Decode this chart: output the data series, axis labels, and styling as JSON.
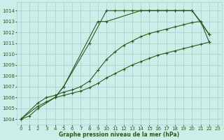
{
  "background_color": "#cceee8",
  "grid_color": "#aad4ce",
  "line_color": "#2d5a1b",
  "xlabel": "Graphe pression niveau de la mer (hPa)",
  "ylim": [
    1003.5,
    1014.8
  ],
  "xlim": [
    -0.5,
    23.5
  ],
  "yticks": [
    1004,
    1005,
    1006,
    1007,
    1008,
    1009,
    1010,
    1011,
    1012,
    1013,
    1014
  ],
  "xticks": [
    0,
    1,
    2,
    3,
    4,
    5,
    6,
    7,
    8,
    9,
    10,
    11,
    12,
    13,
    14,
    15,
    16,
    17,
    18,
    19,
    20,
    21,
    22,
    23
  ],
  "s1_x": [
    0,
    1,
    2,
    4,
    5,
    9,
    10,
    14,
    15,
    16,
    17,
    18,
    19,
    20,
    21,
    22
  ],
  "s1_y": [
    1004.0,
    1004.3,
    1005.0,
    1006.0,
    1007.0,
    1013.0,
    1013.0,
    1014.0,
    1014.0,
    1014.0,
    1014.0,
    1014.0,
    1014.0,
    1014.0,
    1013.0,
    1011.1
  ],
  "s2_x": [
    0,
    2,
    3,
    4,
    5,
    6,
    7,
    8,
    9,
    10,
    11,
    12,
    13,
    14,
    15,
    16,
    17,
    18,
    19,
    20,
    21,
    22
  ],
  "s2_y": [
    1004.0,
    1005.5,
    1006.0,
    1006.2,
    1006.5,
    1006.7,
    1007.0,
    1007.5,
    1008.5,
    1009.5,
    1010.2,
    1010.8,
    1011.2,
    1011.6,
    1011.9,
    1012.1,
    1012.3,
    1012.5,
    1012.7,
    1012.9,
    1013.0,
    1011.8
  ],
  "s3_x": [
    0,
    2,
    3,
    4,
    5,
    6,
    7,
    8,
    9,
    10,
    11,
    12,
    13,
    14,
    15,
    16,
    17,
    18,
    19,
    20,
    21,
    22
  ],
  "s3_y": [
    1004.0,
    1005.2,
    1005.6,
    1006.0,
    1006.2,
    1006.4,
    1006.6,
    1006.9,
    1007.3,
    1007.8,
    1008.2,
    1008.6,
    1009.0,
    1009.3,
    1009.6,
    1009.9,
    1010.1,
    1010.3,
    1010.5,
    1010.7,
    1010.9,
    1011.1
  ],
  "s4_x": [
    4,
    5,
    8,
    10,
    11,
    12,
    13,
    14,
    15,
    16,
    17,
    18,
    19,
    20,
    22
  ],
  "s4_y": [
    1006.0,
    1007.0,
    1011.0,
    1014.0,
    1014.0,
    1014.0,
    1014.0,
    1014.0,
    1014.0,
    1014.0,
    1014.0,
    1014.0,
    1014.0,
    1014.0,
    1011.8
  ]
}
